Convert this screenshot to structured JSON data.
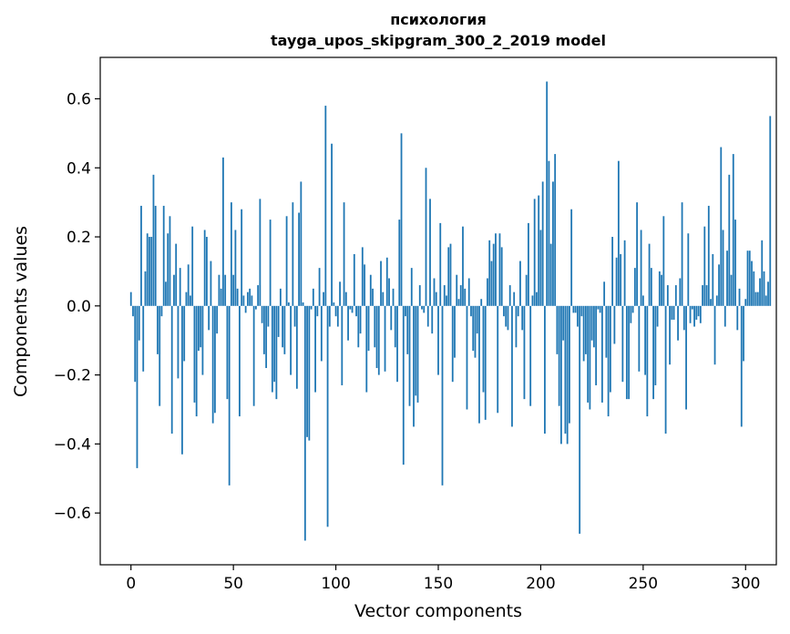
{
  "chart_data": {
    "type": "bar",
    "title": "психология",
    "subtitle": "tayga_upos_skipgram_300_2_2019 model",
    "xlabel": "Vector components",
    "ylabel": "Components values",
    "xlim": [
      -15,
      315
    ],
    "ylim": [
      -0.75,
      0.72
    ],
    "xticks": [
      0,
      50,
      100,
      150,
      200,
      250,
      300
    ],
    "xtick_labels": [
      "0",
      "50",
      "100",
      "150",
      "200",
      "250",
      "300"
    ],
    "yticks": [
      -0.6,
      -0.4,
      -0.2,
      0.0,
      0.2,
      0.4,
      0.6
    ],
    "ytick_labels": [
      "−0.6",
      "−0.4",
      "−0.2",
      "0.0",
      "0.2",
      "0.4",
      "0.6"
    ],
    "grid": false,
    "bar_color": "#1f77b4",
    "series": [
      {
        "values": [
          0.04,
          -0.03,
          -0.22,
          -0.47,
          -0.1,
          0.29,
          -0.19,
          0.1,
          0.21,
          0.2,
          0.2,
          0.38,
          0.29,
          -0.14,
          -0.29,
          -0.03,
          0.29,
          0.07,
          0.21,
          0.26,
          -0.37,
          0.09,
          0.18,
          -0.21,
          0.11,
          -0.43,
          -0.16,
          0.04,
          0.12,
          0.03,
          0.23,
          -0.28,
          -0.32,
          -0.13,
          -0.12,
          -0.2,
          0.22,
          0.2,
          -0.07,
          0.13,
          -0.34,
          -0.31,
          -0.08,
          0.09,
          0.05,
          0.43,
          0.09,
          -0.27,
          -0.52,
          0.3,
          0.09,
          0.22,
          0.05,
          -0.32,
          0.28,
          0.03,
          -0.02,
          0.04,
          0.05,
          0.03,
          -0.29,
          -0.01,
          0.06,
          0.31,
          -0.05,
          -0.14,
          -0.18,
          -0.06,
          0.25,
          -0.25,
          -0.22,
          -0.27,
          -0.09,
          0.05,
          -0.12,
          -0.14,
          0.26,
          0.01,
          -0.2,
          0.3,
          -0.06,
          -0.24,
          0.27,
          0.36,
          0.01,
          -0.68,
          -0.38,
          -0.39,
          -0.01,
          0.05,
          -0.25,
          -0.03,
          0.11,
          -0.16,
          0.04,
          0.58,
          -0.64,
          -0.06,
          0.47,
          0.01,
          -0.03,
          -0.06,
          0.07,
          -0.23,
          0.3,
          0.04,
          -0.1,
          -0.01,
          -0.02,
          0.15,
          -0.03,
          -0.12,
          -0.08,
          0.17,
          0.12,
          -0.25,
          -0.13,
          0.09,
          0.05,
          -0.12,
          -0.18,
          -0.2,
          0.13,
          0.04,
          -0.19,
          0.14,
          0.08,
          -0.07,
          0.05,
          -0.12,
          -0.22,
          0.25,
          0.5,
          -0.46,
          -0.03,
          -0.14,
          -0.29,
          0.11,
          -0.35,
          -0.26,
          -0.28,
          0.06,
          -0.01,
          -0.02,
          0.4,
          -0.06,
          0.31,
          -0.08,
          0.08,
          0.04,
          -0.2,
          0.24,
          -0.52,
          0.06,
          0.03,
          0.17,
          0.18,
          -0.22,
          -0.15,
          0.09,
          0.02,
          0.06,
          0.23,
          0.05,
          -0.3,
          0.08,
          -0.03,
          -0.13,
          -0.15,
          -0.08,
          -0.34,
          0.02,
          -0.25,
          -0.33,
          0.08,
          0.19,
          0.13,
          0.18,
          0.21,
          -0.31,
          0.21,
          0.17,
          -0.03,
          -0.06,
          -0.07,
          0.06,
          -0.35,
          0.04,
          -0.12,
          -0.03,
          0.13,
          -0.07,
          -0.27,
          0.09,
          0.24,
          -0.29,
          0.03,
          0.31,
          0.04,
          0.32,
          0.22,
          0.36,
          -0.37,
          0.65,
          0.42,
          0.18,
          0.36,
          0.44,
          -0.14,
          -0.29,
          -0.4,
          -0.1,
          -0.37,
          -0.4,
          -0.34,
          0.28,
          -0.02,
          -0.02,
          -0.06,
          -0.66,
          -0.03,
          -0.16,
          -0.14,
          -0.28,
          -0.3,
          -0.1,
          -0.12,
          -0.23,
          -0.01,
          -0.02,
          -0.28,
          0.07,
          -0.15,
          -0.32,
          -0.25,
          0.2,
          -0.11,
          0.14,
          0.42,
          0.15,
          -0.22,
          0.19,
          -0.27,
          -0.27,
          -0.05,
          -0.02,
          0.11,
          0.3,
          -0.19,
          0.22,
          0.03,
          -0.2,
          -0.32,
          0.18,
          0.11,
          -0.27,
          -0.23,
          -0.06,
          0.1,
          0.09,
          0.26,
          -0.37,
          0.06,
          -0.17,
          -0.04,
          -0.04,
          0.06,
          -0.1,
          0.08,
          0.3,
          -0.07,
          -0.3,
          0.21,
          -0.05,
          -0.01,
          -0.06,
          -0.04,
          -0.03,
          -0.05,
          0.06,
          0.23,
          0.06,
          0.29,
          0.02,
          0.15,
          -0.17,
          0.03,
          0.12,
          0.46,
          0.22,
          -0.06,
          0.16,
          0.38,
          0.09,
          0.44,
          0.25,
          -0.07,
          0.05,
          -0.35,
          -0.16,
          0.02,
          0.16,
          0.16,
          0.13,
          0.1,
          0.04,
          0.04,
          0.08,
          0.19,
          0.1,
          0.03,
          0.07,
          0.55
        ]
      }
    ]
  }
}
